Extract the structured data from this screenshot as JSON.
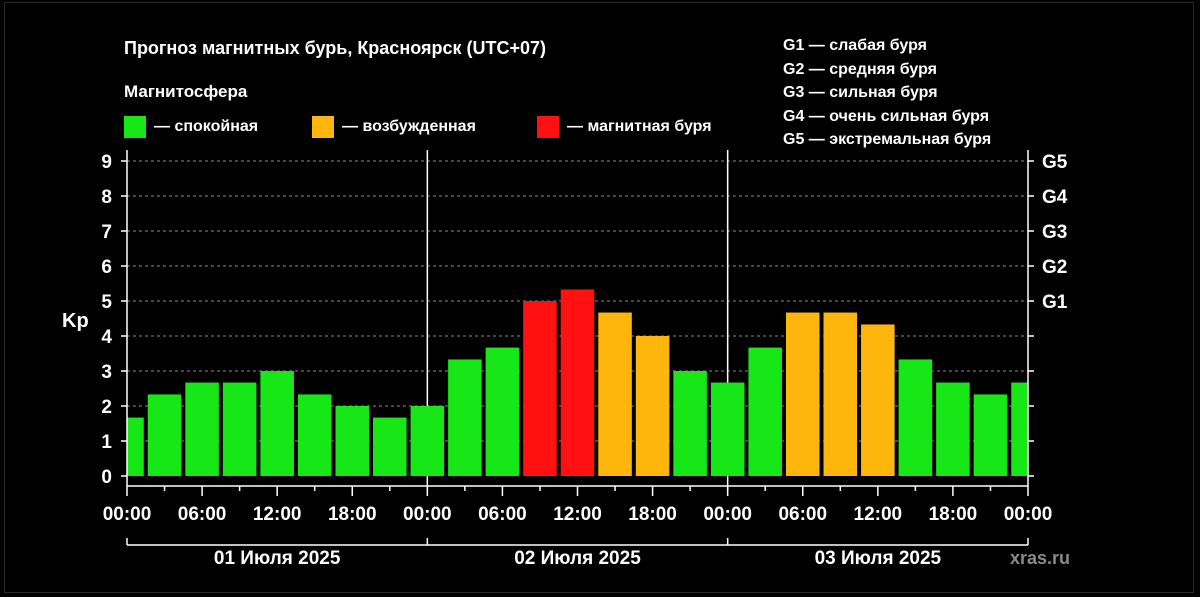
{
  "title": "Прогноз магнитных бурь, Красноярск (UTC+07)",
  "legend_title": "Магнитосфера",
  "legend": [
    {
      "label": "— спокойная",
      "color": "#17e617"
    },
    {
      "label": "— возбужденная",
      "color": "#ffb60c"
    },
    {
      "label": "— магнитная буря",
      "color": "#ff1111"
    }
  ],
  "g_legend": [
    "G1 — слабая буря",
    "G2 — средняя буря",
    "G3 — сильная буря",
    "G4 — очень сильная буря",
    "G5 — экстремальная буря"
  ],
  "watermark": "xras.ru",
  "chart_data": {
    "type": "bar",
    "ylabel": "Kp",
    "ylim": [
      0,
      9
    ],
    "yticks": [
      "0",
      "1",
      "2",
      "3",
      "4",
      "5",
      "6",
      "7",
      "8",
      "9"
    ],
    "right_ticks": [
      "G1",
      "G2",
      "G3",
      "G4",
      "G5"
    ],
    "xtick_labels": [
      "00:00",
      "06:00",
      "12:00",
      "18:00",
      "00:00",
      "06:00",
      "12:00",
      "18:00",
      "00:00",
      "06:00",
      "12:00",
      "18:00",
      "00:00"
    ],
    "days": [
      "01 Июля 2025",
      "02 Июля 2025",
      "03 Июля 2025"
    ],
    "grid": "horizontal dashed",
    "values": [
      1.67,
      2.33,
      2.67,
      2.67,
      3.0,
      2.33,
      2.0,
      1.67,
      2.0,
      3.33,
      3.67,
      5.0,
      5.33,
      4.67,
      4.0,
      3.0,
      2.67,
      3.67,
      4.67,
      4.67,
      4.33,
      3.33,
      2.67,
      2.33,
      2.67
    ],
    "colors": [
      "green",
      "green",
      "green",
      "green",
      "green",
      "green",
      "green",
      "green",
      "green",
      "green",
      "green",
      "red",
      "red",
      "orange",
      "orange",
      "green",
      "green",
      "green",
      "orange",
      "orange",
      "orange",
      "green",
      "green",
      "green",
      "green"
    ],
    "color_map": {
      "green": "#17e617",
      "orange": "#ffb60c",
      "red": "#ff1111"
    }
  }
}
